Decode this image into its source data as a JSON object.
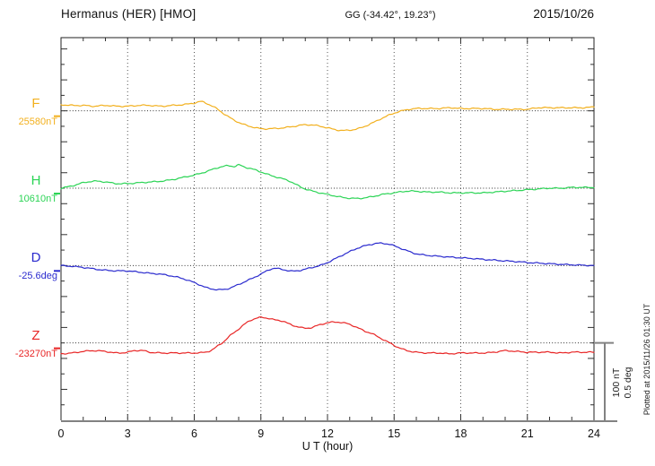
{
  "header": {
    "title": "Hermanus (HER)  [HMO]",
    "coordinates": "GG (-34.42°,  19.23°)",
    "date": "2015/10/26"
  },
  "scale_bar": {
    "line1": "100 nT",
    "line2": "0.5 deg"
  },
  "side_note": "Plotted at 2015/11/26 01:30 UT",
  "chart_data": {
    "type": "line",
    "title": "Hermanus (HER) [HMO] magnetogram 2015/10/26",
    "xlabel": "U T (hour)",
    "x_range": [
      0,
      24
    ],
    "x_ticks": [
      0,
      3,
      6,
      9,
      12,
      15,
      18,
      21,
      24
    ],
    "grid": true,
    "legend_position": "left-margin",
    "scale_per_division": {
      "nT": 100,
      "deg": 0.5
    },
    "series": [
      {
        "name": "F",
        "unit": "nT",
        "base_value": 25580,
        "base_label": "25580nT",
        "color": "#f2b01e",
        "offsets_from_base": [
          [
            0,
            8
          ],
          [
            0.5,
            7
          ],
          [
            1,
            7
          ],
          [
            1.5,
            6
          ],
          [
            2,
            7
          ],
          [
            2.5,
            6
          ],
          [
            3,
            6
          ],
          [
            3.5,
            7
          ],
          [
            4,
            7
          ],
          [
            4.5,
            6
          ],
          [
            5,
            7
          ],
          [
            5.5,
            8
          ],
          [
            6,
            10
          ],
          [
            6.3,
            12
          ],
          [
            6.6,
            9
          ],
          [
            7,
            3
          ],
          [
            7.5,
            -7
          ],
          [
            8,
            -15
          ],
          [
            8.5,
            -20
          ],
          [
            9,
            -23
          ],
          [
            9.5,
            -23
          ],
          [
            10,
            -22
          ],
          [
            10.5,
            -20
          ],
          [
            11,
            -18
          ],
          [
            11.5,
            -19
          ],
          [
            12,
            -22
          ],
          [
            12.5,
            -25
          ],
          [
            13,
            -25
          ],
          [
            13.5,
            -22
          ],
          [
            14,
            -16
          ],
          [
            14.5,
            -9
          ],
          [
            15,
            -3
          ],
          [
            15.5,
            1
          ],
          [
            16,
            3
          ],
          [
            16.5,
            3
          ],
          [
            17,
            3
          ],
          [
            17.5,
            4
          ],
          [
            18,
            3
          ],
          [
            18.5,
            3
          ],
          [
            19,
            3
          ],
          [
            19.5,
            2
          ],
          [
            20,
            2
          ],
          [
            20.5,
            2
          ],
          [
            21,
            2
          ],
          [
            21.5,
            4
          ],
          [
            22,
            4
          ],
          [
            22.5,
            4
          ],
          [
            23,
            4
          ],
          [
            23.5,
            4
          ],
          [
            24,
            5
          ]
        ]
      },
      {
        "name": "H",
        "unit": "nT",
        "base_value": 10610,
        "base_label": "10610nT",
        "color": "#2cd456",
        "offsets_from_base": [
          [
            0,
            0
          ],
          [
            0.5,
            3
          ],
          [
            1,
            7
          ],
          [
            1.5,
            9
          ],
          [
            2,
            8
          ],
          [
            2.5,
            6
          ],
          [
            3,
            6
          ],
          [
            3.5,
            7
          ],
          [
            4,
            8
          ],
          [
            4.5,
            9
          ],
          [
            5,
            11
          ],
          [
            5.5,
            14
          ],
          [
            6,
            17
          ],
          [
            6.5,
            21
          ],
          [
            7,
            26
          ],
          [
            7.5,
            29
          ],
          [
            7.8,
            28
          ],
          [
            8,
            30
          ],
          [
            8.3,
            27
          ],
          [
            8.6,
            25
          ],
          [
            9,
            21
          ],
          [
            9.5,
            16
          ],
          [
            10,
            12
          ],
          [
            10.3,
            9
          ],
          [
            10.7,
            3
          ],
          [
            11,
            -1
          ],
          [
            11.5,
            -5
          ],
          [
            12,
            -8
          ],
          [
            12.5,
            -11
          ],
          [
            13,
            -13
          ],
          [
            13.5,
            -13
          ],
          [
            14,
            -11
          ],
          [
            14.5,
            -8
          ],
          [
            15,
            -6
          ],
          [
            15.5,
            -4
          ],
          [
            16,
            -4
          ],
          [
            16.5,
            -5
          ],
          [
            17,
            -5
          ],
          [
            17.5,
            -6
          ],
          [
            18,
            -6
          ],
          [
            18.5,
            -6
          ],
          [
            19,
            -6
          ],
          [
            19.5,
            -5
          ],
          [
            20,
            -4
          ],
          [
            20.5,
            -3
          ],
          [
            21,
            -2
          ],
          [
            21.5,
            -1
          ],
          [
            22,
            0
          ],
          [
            22.5,
            0
          ],
          [
            23,
            1
          ],
          [
            23.5,
            1
          ],
          [
            24,
            1
          ]
        ]
      },
      {
        "name": "D",
        "unit": "deg",
        "base_value": -25.6,
        "base_label": "-25.6deg",
        "color": "#2a2ace",
        "offsets_from_base": [
          [
            0,
            0
          ],
          [
            0.5,
            -0.005
          ],
          [
            1,
            -0.012
          ],
          [
            1.5,
            -0.022
          ],
          [
            2,
            -0.03
          ],
          [
            2.5,
            -0.034
          ],
          [
            3,
            -0.035
          ],
          [
            3.5,
            -0.042
          ],
          [
            4,
            -0.05
          ],
          [
            4.5,
            -0.056
          ],
          [
            5,
            -0.068
          ],
          [
            5.5,
            -0.085
          ],
          [
            6,
            -0.11
          ],
          [
            6.3,
            -0.128
          ],
          [
            6.6,
            -0.145
          ],
          [
            7,
            -0.155
          ],
          [
            7.3,
            -0.155
          ],
          [
            7.6,
            -0.146
          ],
          [
            8,
            -0.122
          ],
          [
            8.5,
            -0.09
          ],
          [
            9,
            -0.055
          ],
          [
            9.3,
            -0.032
          ],
          [
            9.6,
            -0.018
          ],
          [
            10,
            -0.026
          ],
          [
            10.4,
            -0.036
          ],
          [
            10.8,
            -0.03
          ],
          [
            11.2,
            -0.016
          ],
          [
            11.7,
            0.002
          ],
          [
            12,
            0.02
          ],
          [
            12.5,
            0.055
          ],
          [
            13,
            0.09
          ],
          [
            13.5,
            0.12
          ],
          [
            14,
            0.138
          ],
          [
            14.3,
            0.144
          ],
          [
            14.7,
            0.14
          ],
          [
            15,
            0.128
          ],
          [
            15.5,
            0.1
          ],
          [
            16,
            0.076
          ],
          [
            16.5,
            0.066
          ],
          [
            17,
            0.06
          ],
          [
            17.5,
            0.055
          ],
          [
            18,
            0.05
          ],
          [
            18.5,
            0.046
          ],
          [
            19,
            0.04
          ],
          [
            19.5,
            0.035
          ],
          [
            20,
            0.03
          ],
          [
            20.5,
            0.026
          ],
          [
            21,
            0.02
          ],
          [
            21.5,
            0.016
          ],
          [
            22,
            0.012
          ],
          [
            22.5,
            0.008
          ],
          [
            23,
            0.005
          ],
          [
            23.5,
            0.002
          ],
          [
            24,
            0
          ]
        ]
      },
      {
        "name": "Z",
        "unit": "nT",
        "base_value": -23270,
        "base_label": "-23270nT",
        "color": "#e82525",
        "offsets_from_base": [
          [
            0,
            -14
          ],
          [
            0.5,
            -13
          ],
          [
            1,
            -11
          ],
          [
            1.5,
            -10
          ],
          [
            2,
            -11
          ],
          [
            2.5,
            -13
          ],
          [
            3,
            -12
          ],
          [
            3.3,
            -10
          ],
          [
            3.7,
            -10
          ],
          [
            4,
            -12
          ],
          [
            4.5,
            -13
          ],
          [
            5,
            -13
          ],
          [
            5.5,
            -13
          ],
          [
            6,
            -13
          ],
          [
            6.5,
            -12
          ],
          [
            6.8,
            -9
          ],
          [
            7,
            -5
          ],
          [
            7.3,
            1
          ],
          [
            7.6,
            9
          ],
          [
            8,
            18
          ],
          [
            8.4,
            27
          ],
          [
            8.7,
            31
          ],
          [
            9,
            33
          ],
          [
            9.3,
            32
          ],
          [
            9.6,
            30
          ],
          [
            10,
            28
          ],
          [
            10.4,
            23
          ],
          [
            10.8,
            20
          ],
          [
            11,
            19
          ],
          [
            11.3,
            20
          ],
          [
            11.6,
            23
          ],
          [
            12,
            26
          ],
          [
            12.4,
            27
          ],
          [
            12.7,
            26
          ],
          [
            13,
            24
          ],
          [
            13.4,
            19
          ],
          [
            13.7,
            15
          ],
          [
            14,
            12
          ],
          [
            14.4,
            6
          ],
          [
            14.8,
            0
          ],
          [
            15.2,
            -6
          ],
          [
            15.6,
            -10
          ],
          [
            16,
            -12
          ],
          [
            16.5,
            -13
          ],
          [
            17,
            -13
          ],
          [
            17.5,
            -14
          ],
          [
            18,
            -13
          ],
          [
            18.5,
            -13
          ],
          [
            19,
            -13
          ],
          [
            19.5,
            -12
          ],
          [
            20,
            -10
          ],
          [
            20.5,
            -11
          ],
          [
            21,
            -12
          ],
          [
            21.5,
            -12
          ],
          [
            22,
            -12
          ],
          [
            22.5,
            -13
          ],
          [
            23,
            -12
          ],
          [
            23.5,
            -12
          ],
          [
            24,
            -12
          ]
        ]
      }
    ]
  }
}
